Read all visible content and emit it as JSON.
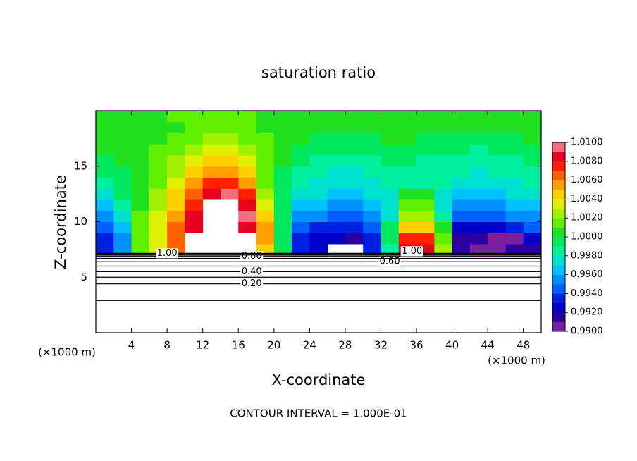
{
  "chart_data": {
    "type": "heatmap",
    "title": "saturation ratio",
    "x_label": "X-coordinate",
    "y_label": "Z-coordinate",
    "x_unit": "(×1000 m)",
    "y_unit": "(×1000 m)",
    "footnote": "CONTOUR INTERVAL = 1.000E-01",
    "xlim": [
      0,
      50
    ],
    "ylim": [
      0,
      20
    ],
    "xticks": [
      4,
      8,
      12,
      16,
      20,
      24,
      28,
      32,
      36,
      40,
      44,
      48
    ],
    "yticks": [
      5,
      10,
      15
    ],
    "x": [
      1,
      3,
      5,
      7,
      9,
      11,
      13,
      15,
      17,
      19,
      21,
      23,
      25,
      27,
      29,
      31,
      33,
      35,
      37,
      39,
      41,
      43,
      45,
      47,
      49
    ],
    "y": [
      7.5,
      8.5,
      9.5,
      10.5,
      11.5,
      12.5,
      13.5,
      14.5,
      15.5,
      16.5,
      17.5,
      18.5,
      19.5
    ],
    "z": [
      [
        0.993,
        0.995,
        1.001,
        1.003,
        1.006,
        null,
        null,
        null,
        null,
        1.004,
        0.999,
        0.993,
        0.992,
        null,
        null,
        0.993,
        0.998,
        1.008,
        1.008,
        1.002,
        0.991,
        0.99,
        0.99,
        0.991,
        0.991
      ],
      [
        0.993,
        0.995,
        1.001,
        1.003,
        1.006,
        null,
        null,
        null,
        null,
        1.005,
        0.999,
        0.993,
        0.992,
        0.992,
        0.991,
        0.993,
        0.999,
        1.007,
        1.007,
        1.001,
        0.991,
        0.991,
        0.99,
        0.99,
        0.992
      ],
      [
        0.994,
        0.996,
        1.001,
        1.003,
        1.006,
        1.008,
        null,
        null,
        1.008,
        1.005,
        0.999,
        0.994,
        0.993,
        0.993,
        0.993,
        0.994,
        0.999,
        1.004,
        1.004,
        1.0,
        0.992,
        0.992,
        0.992,
        0.993,
        0.994
      ],
      [
        0.995,
        0.997,
        1.001,
        1.003,
        1.005,
        1.008,
        null,
        null,
        1.009,
        1.004,
        0.999,
        0.995,
        0.995,
        0.994,
        0.994,
        0.995,
        0.997,
        1.002,
        1.002,
        0.998,
        0.994,
        0.994,
        0.994,
        0.995,
        0.995
      ],
      [
        0.996,
        0.998,
        1.0,
        1.002,
        1.004,
        1.007,
        null,
        null,
        1.008,
        1.003,
        0.999,
        0.996,
        0.996,
        0.995,
        0.995,
        0.996,
        0.997,
        1.001,
        1.001,
        0.997,
        0.995,
        0.995,
        0.995,
        0.996,
        0.996
      ],
      [
        0.997,
        0.999,
        1.0,
        1.002,
        1.004,
        1.006,
        1.008,
        1.009,
        1.007,
        1.002,
        0.999,
        0.997,
        0.997,
        0.996,
        0.996,
        0.997,
        0.997,
        1.0,
        1.0,
        0.997,
        0.996,
        0.996,
        0.996,
        0.997,
        0.997
      ],
      [
        0.998,
        0.999,
        1.0,
        1.001,
        1.003,
        1.005,
        1.007,
        1.007,
        1.005,
        1.001,
        0.999,
        0.998,
        0.997,
        0.997,
        0.997,
        0.997,
        0.998,
        0.998,
        0.998,
        0.998,
        0.997,
        0.997,
        0.997,
        0.997,
        0.998
      ],
      [
        0.999,
        0.999,
        1.0,
        1.001,
        1.002,
        1.004,
        1.005,
        1.005,
        1.004,
        1.001,
        0.999,
        0.998,
        0.998,
        0.997,
        0.997,
        0.998,
        0.998,
        0.998,
        0.998,
        0.998,
        0.998,
        0.997,
        0.998,
        0.998,
        0.998
      ],
      [
        0.999,
        1.0,
        1.0,
        1.001,
        1.002,
        1.003,
        1.004,
        1.004,
        1.003,
        1.001,
        1.0,
        0.999,
        0.998,
        0.998,
        0.998,
        0.998,
        0.999,
        0.999,
        0.998,
        0.998,
        0.998,
        0.998,
        0.998,
        0.998,
        0.999
      ],
      [
        1.0,
        1.0,
        1.0,
        1.001,
        1.001,
        1.002,
        1.003,
        1.003,
        1.002,
        1.001,
        1.0,
        0.999,
        0.999,
        0.999,
        0.999,
        0.999,
        0.999,
        0.999,
        0.999,
        0.999,
        0.999,
        0.998,
        0.999,
        0.999,
        0.999
      ],
      [
        1.0,
        1.0,
        1.0,
        1.0,
        1.001,
        1.001,
        1.002,
        1.002,
        1.001,
        1.001,
        1.0,
        1.0,
        0.999,
        0.999,
        0.999,
        0.999,
        1.0,
        1.0,
        0.999,
        0.999,
        0.999,
        0.999,
        0.999,
        0.999,
        1.0
      ],
      [
        1.0,
        1.0,
        1.0,
        1.0,
        1.0,
        1.001,
        1.001,
        1.001,
        1.001,
        1.0,
        1.0,
        1.0,
        1.0,
        1.0,
        1.0,
        1.0,
        1.0,
        1.0,
        1.0,
        1.0,
        1.0,
        1.0,
        1.0,
        1.0,
        1.0
      ],
      [
        1.0,
        1.0,
        1.0,
        1.0,
        1.001,
        1.001,
        1.001,
        1.001,
        1.001,
        1.0,
        1.0,
        1.0,
        1.0,
        1.0,
        1.0,
        1.0,
        1.0,
        1.0,
        1.0,
        1.0,
        1.0,
        1.0,
        1.0,
        1.0,
        1.0
      ]
    ],
    "colorbar": {
      "lim": [
        0.99,
        1.01
      ],
      "colors": [
        "#7a1fa0",
        "#2a00a0",
        "#0000c8",
        "#0020e0",
        "#0060ff",
        "#0090ff",
        "#00c0ff",
        "#00e0d0",
        "#00f0a0",
        "#00e860",
        "#20e020",
        "#60f000",
        "#a0f000",
        "#e0f000",
        "#ffd000",
        "#ffa000",
        "#ff6000",
        "#ff2000",
        "#e80020",
        "#f07080"
      ],
      "ticks": [
        {
          "value": 0.99,
          "label": "0.9900"
        },
        {
          "value": 0.992,
          "label": "0.9920"
        },
        {
          "value": 0.994,
          "label": "0.9940"
        },
        {
          "value": 0.996,
          "label": "0.9960"
        },
        {
          "value": 0.998,
          "label": "0.9980"
        },
        {
          "value": 1.0,
          "label": "1.0000"
        },
        {
          "value": 1.002,
          "label": "1.0020"
        },
        {
          "value": 1.004,
          "label": "1.0040"
        },
        {
          "value": 1.006,
          "label": "1.0060"
        },
        {
          "value": 1.008,
          "label": "1.0080"
        },
        {
          "value": 1.01,
          "label": "1.0100"
        }
      ]
    },
    "contours": [
      {
        "level": 0.1,
        "z": 2.9
      },
      {
        "level": {
          "value": 0.2,
          "label": "0.20"
        },
        "z": 4.4
      },
      {
        "level": 0.3,
        "z": 5.0
      },
      {
        "level": {
          "value": 0.4,
          "label": "0.40"
        },
        "z": 5.5
      },
      {
        "level": 0.5,
        "z": 6.0
      },
      {
        "level": {
          "value": 0.6,
          "label": "0.60"
        },
        "z": 6.4
      },
      {
        "level": 0.7,
        "z": 6.7
      },
      {
        "level": {
          "value": 0.8,
          "label": "0.80"
        },
        "z": 6.9
      },
      {
        "level": 0.9,
        "z": 7.0
      },
      {
        "level": {
          "value": 1.0,
          "label": "1.00"
        },
        "z": 7.15
      }
    ]
  }
}
